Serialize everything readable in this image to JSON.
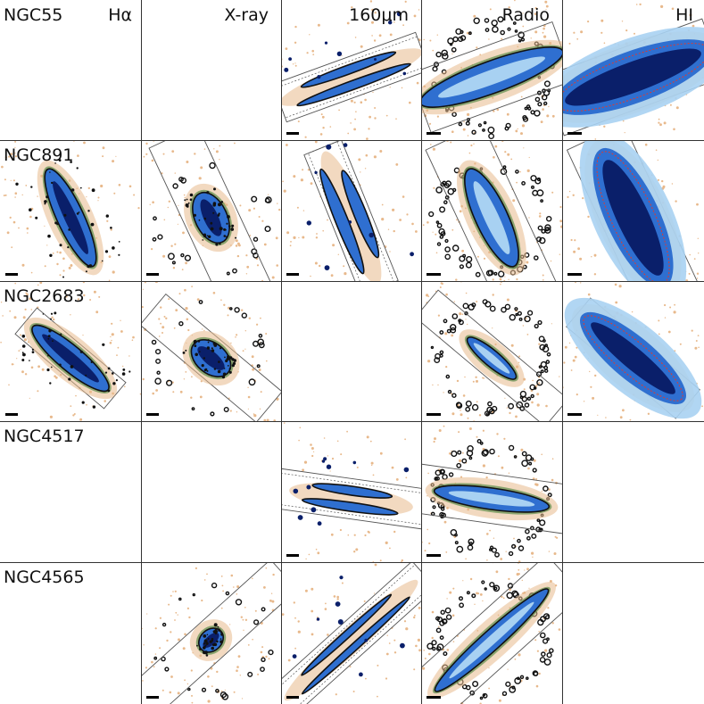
{
  "figure": {
    "bands": [
      "Hα",
      "X-ray",
      "160μm",
      "Radio",
      "HI"
    ],
    "galaxies": [
      "NGC55",
      "NGC891",
      "NGC2683",
      "NGC4517",
      "NGC4565"
    ],
    "panels": [
      [
        {
          "band": "Hα",
          "present": false
        },
        {
          "band": "X-ray",
          "present": false
        },
        {
          "band": "160μm",
          "present": true,
          "style": "ir",
          "angle": -20,
          "len": 150,
          "wid": 10,
          "box": {
            "w": 170,
            "h": 45
          }
        },
        {
          "band": "Radio",
          "present": true,
          "style": "radio",
          "angle": -20,
          "len": 170,
          "wid": 36,
          "box": {
            "w": 170,
            "h": 70
          }
        },
        {
          "band": "HI",
          "present": true,
          "style": "hi",
          "angle": -20,
          "len": 190,
          "wid": 58,
          "box": {
            "w": 190,
            "h": 70
          }
        }
      ],
      [
        {
          "band": "Hα",
          "present": true,
          "style": "ha",
          "angle": 65,
          "len": 120,
          "wid": 30,
          "box": null
        },
        {
          "band": "X-ray",
          "present": true,
          "style": "xray",
          "angle": 65,
          "len": 60,
          "wid": 36,
          "box": {
            "w": 200,
            "h": 60
          }
        },
        {
          "band": "160μm",
          "present": true,
          "style": "ir",
          "angle": 68,
          "len": 140,
          "wid": 14,
          "box": {
            "w": 170,
            "h": 45
          }
        },
        {
          "band": "Radio",
          "present": true,
          "style": "radio",
          "angle": 65,
          "len": 120,
          "wid": 36,
          "box": {
            "w": 200,
            "h": 70
          }
        },
        {
          "band": "HI",
          "present": true,
          "style": "hi",
          "angle": 65,
          "len": 170,
          "wid": 60,
          "box": {
            "w": 200,
            "h": 70
          }
        }
      ],
      [
        {
          "band": "Hα",
          "present": true,
          "style": "ha",
          "angle": 40,
          "len": 110,
          "wid": 28,
          "box": {
            "w": 130,
            "h": 38
          }
        },
        {
          "band": "X-ray",
          "present": true,
          "style": "xray",
          "angle": 40,
          "len": 50,
          "wid": 34,
          "box": {
            "w": 170,
            "h": 45
          }
        },
        {
          "band": "160μm",
          "present": false
        },
        {
          "band": "Radio",
          "present": true,
          "style": "radio",
          "angle": 40,
          "len": 70,
          "wid": 18,
          "box": {
            "w": 190,
            "h": 40
          }
        },
        {
          "band": "HI",
          "present": true,
          "style": "hi",
          "angle": 40,
          "len": 150,
          "wid": 48,
          "box": {
            "w": 160,
            "h": 42
          }
        }
      ],
      [
        {
          "band": "Hα",
          "present": false
        },
        {
          "band": "X-ray",
          "present": false
        },
        {
          "band": "160μm",
          "present": true,
          "style": "ir",
          "angle": 8,
          "len": 120,
          "wid": 10,
          "box": {
            "w": 180,
            "h": 45
          }
        },
        {
          "band": "Radio",
          "present": true,
          "style": "radio",
          "angle": 8,
          "len": 130,
          "wid": 24,
          "box": {
            "w": 180,
            "h": 55
          }
        },
        {
          "band": "HI",
          "present": false
        }
      ],
      [
        {
          "band": "Hα",
          "present": false
        },
        {
          "band": "X-ray",
          "present": true,
          "style": "xray",
          "angle": -42,
          "len": 30,
          "wid": 24,
          "box": {
            "w": 220,
            "h": 45
          }
        },
        {
          "band": "160μm",
          "present": true,
          "style": "ir",
          "angle": -42,
          "len": 180,
          "wid": 8,
          "box": {
            "w": 220,
            "h": 40
          }
        },
        {
          "band": "Radio",
          "present": true,
          "style": "radio",
          "angle": -42,
          "len": 170,
          "wid": 22,
          "box": {
            "w": 220,
            "h": 60
          }
        },
        {
          "band": "HI",
          "present": false
        }
      ]
    ]
  },
  "colors": {
    "tan": "#e8b98c",
    "green": "#5f8f4d",
    "navy": "#0a1f6a",
    "blue": "#2f6fd0",
    "light_blue": "#a8d1f2",
    "outline": "#111111",
    "box": "#555555",
    "hi_contour": "#e03a2f"
  }
}
